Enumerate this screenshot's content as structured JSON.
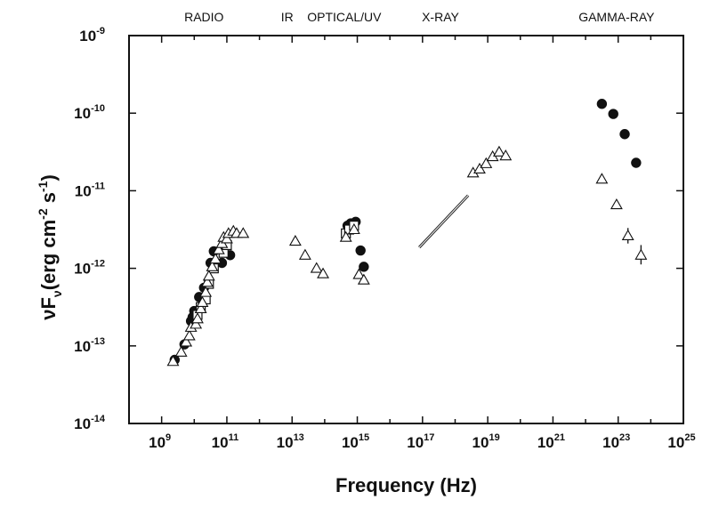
{
  "chart_data": {
    "type": "scatter",
    "title": "",
    "xlabel": "Frequency (Hz)",
    "ylabel": {
      "prefix": "νF",
      "subscript": "ν",
      "open": "(erg cm",
      "exp1": "-2",
      "mid": " s",
      "exp2": "-1",
      "close": ")"
    },
    "xscale": "log",
    "yscale": "log",
    "xlim_exp": [
      8,
      25
    ],
    "ylim_exp": [
      -14,
      -9
    ],
    "x_ticks": [
      {
        "exp": 9,
        "base": "10",
        "sup": "9"
      },
      {
        "exp": 11,
        "base": "10",
        "sup": "11"
      },
      {
        "exp": 13,
        "base": "10",
        "sup": "13"
      },
      {
        "exp": 15,
        "base": "10",
        "sup": "15"
      },
      {
        "exp": 17,
        "base": "10",
        "sup": "17"
      },
      {
        "exp": 19,
        "base": "10",
        "sup": "19"
      },
      {
        "exp": 21,
        "base": "10",
        "sup": "21"
      },
      {
        "exp": 23,
        "base": "10",
        "sup": "23"
      },
      {
        "exp": 25,
        "base": "10",
        "sup": "25"
      }
    ],
    "y_ticks": [
      {
        "exp": -9,
        "base": "10",
        "sup": "-9"
      },
      {
        "exp": -10,
        "base": "10",
        "sup": "-10"
      },
      {
        "exp": -11,
        "base": "10",
        "sup": "-11"
      },
      {
        "exp": -12,
        "base": "10",
        "sup": "-12"
      },
      {
        "exp": -13,
        "base": "10",
        "sup": "-13"
      },
      {
        "exp": -14,
        "base": "10",
        "sup": "-14"
      }
    ],
    "bands": [
      {
        "name": "RADIO",
        "log_nu": 10.3
      },
      {
        "name": "IR",
        "log_nu": 12.85
      },
      {
        "name": "OPTICAL/UV",
        "log_nu": 14.6
      },
      {
        "name": "X-RAY",
        "log_nu": 17.55
      },
      {
        "name": "GAMMA-RAY",
        "log_nu": 22.95
      }
    ],
    "series": [
      {
        "name": "filled circles",
        "marker": "filled-circle",
        "points": [
          {
            "log_nu": 9.4,
            "log_flux": -13.18
          },
          {
            "log_nu": 9.7,
            "log_flux": -12.98
          },
          {
            "log_nu": 9.9,
            "log_flux": -12.68
          },
          {
            "log_nu": 9.95,
            "log_flux": -12.63
          },
          {
            "log_nu": 10.0,
            "log_flux": -12.55
          },
          {
            "log_nu": 10.15,
            "log_flux": -12.37
          },
          {
            "log_nu": 10.3,
            "log_flux": -12.25
          },
          {
            "log_nu": 10.5,
            "log_flux": -11.93
          },
          {
            "log_nu": 10.6,
            "log_flux": -11.78
          },
          {
            "log_nu": 10.85,
            "log_flux": -11.93
          },
          {
            "log_nu": 11.1,
            "log_flux": -11.83
          },
          {
            "log_nu": 14.7,
            "log_flux": -11.45
          },
          {
            "log_nu": 14.8,
            "log_flux": -11.42
          },
          {
            "log_nu": 14.95,
            "log_flux": -11.4
          },
          {
            "log_nu": 15.1,
            "log_flux": -11.77
          },
          {
            "log_nu": 15.2,
            "log_flux": -11.98
          },
          {
            "log_nu": 22.5,
            "log_flux": -9.88
          },
          {
            "log_nu": 22.85,
            "log_flux": -10.01
          },
          {
            "log_nu": 23.2,
            "log_flux": -10.27
          },
          {
            "log_nu": 23.55,
            "log_flux": -10.64
          }
        ]
      },
      {
        "name": "open squares",
        "marker": "open-square",
        "points": [
          {
            "log_nu": 10.1,
            "log_flux": -12.6
          },
          {
            "log_nu": 10.2,
            "log_flux": -12.5
          },
          {
            "log_nu": 10.35,
            "log_flux": -12.4
          },
          {
            "log_nu": 10.45,
            "log_flux": -12.2
          },
          {
            "log_nu": 10.6,
            "log_flux": -12.0
          },
          {
            "log_nu": 10.9,
            "log_flux": -11.8
          },
          {
            "log_nu": 11.0,
            "log_flux": -11.7
          },
          {
            "log_nu": 14.65,
            "log_flux": -11.55
          },
          {
            "log_nu": 14.75,
            "log_flux": -11.5
          },
          {
            "log_nu": 14.9,
            "log_flux": -11.45
          }
        ]
      },
      {
        "name": "open triangles",
        "marker": "open-triangle",
        "points": [
          {
            "log_nu": 9.35,
            "log_flux": -13.2
          },
          {
            "log_nu": 9.6,
            "log_flux": -13.08
          },
          {
            "log_nu": 9.75,
            "log_flux": -12.95
          },
          {
            "log_nu": 9.85,
            "log_flux": -12.87
          },
          {
            "log_nu": 9.9,
            "log_flux": -12.76
          },
          {
            "log_nu": 10.05,
            "log_flux": -12.72
          },
          {
            "log_nu": 10.1,
            "log_flux": -12.65
          },
          {
            "log_nu": 10.2,
            "log_flux": -12.52
          },
          {
            "log_nu": 10.25,
            "log_flux": -12.44
          },
          {
            "log_nu": 10.35,
            "log_flux": -12.31
          },
          {
            "log_nu": 10.4,
            "log_flux": -12.18
          },
          {
            "log_nu": 10.45,
            "log_flux": -12.1
          },
          {
            "log_nu": 10.55,
            "log_flux": -11.98
          },
          {
            "log_nu": 10.65,
            "log_flux": -11.88
          },
          {
            "log_nu": 10.75,
            "log_flux": -11.76
          },
          {
            "log_nu": 10.85,
            "log_flux": -11.68
          },
          {
            "log_nu": 10.9,
            "log_flux": -11.6
          },
          {
            "log_nu": 11.0,
            "log_flux": -11.62
          },
          {
            "log_nu": 11.05,
            "log_flux": -11.55
          },
          {
            "log_nu": 11.2,
            "log_flux": -11.52
          },
          {
            "log_nu": 11.3,
            "log_flux": -11.55
          },
          {
            "log_nu": 11.5,
            "log_flux": -11.55
          },
          {
            "log_nu": 13.1,
            "log_flux": -11.65
          },
          {
            "log_nu": 13.4,
            "log_flux": -11.83
          },
          {
            "log_nu": 13.75,
            "log_flux": -12.0
          },
          {
            "log_nu": 13.95,
            "log_flux": -12.07
          },
          {
            "log_nu": 14.65,
            "log_flux": -11.6
          },
          {
            "log_nu": 14.9,
            "log_flux": -11.5
          },
          {
            "log_nu": 15.05,
            "log_flux": -12.08
          },
          {
            "log_nu": 15.2,
            "log_flux": -12.15
          },
          {
            "log_nu": 18.55,
            "log_flux": -10.77
          },
          {
            "log_nu": 18.75,
            "log_flux": -10.72
          },
          {
            "log_nu": 18.95,
            "log_flux": -10.65
          },
          {
            "log_nu": 19.15,
            "log_flux": -10.56
          },
          {
            "log_nu": 19.35,
            "log_flux": -10.5
          },
          {
            "log_nu": 19.55,
            "log_flux": -10.55
          },
          {
            "log_nu": 22.5,
            "log_flux": -10.85
          },
          {
            "log_nu": 22.95,
            "log_flux": -11.18
          },
          {
            "log_nu": 23.3,
            "log_flux": -11.58
          },
          {
            "log_nu": 23.7,
            "log_flux": -11.83
          }
        ]
      }
    ],
    "error_bars": [
      {
        "log_nu": 23.3,
        "low": -11.68,
        "high": -11.48
      },
      {
        "log_nu": 23.7,
        "low": -11.95,
        "high": -11.7
      }
    ],
    "powerlaw_fit": {
      "log_nu_start": 16.9,
      "log_flux_start": -11.73,
      "log_nu_end": 18.4,
      "log_flux_end": -11.06
    }
  }
}
